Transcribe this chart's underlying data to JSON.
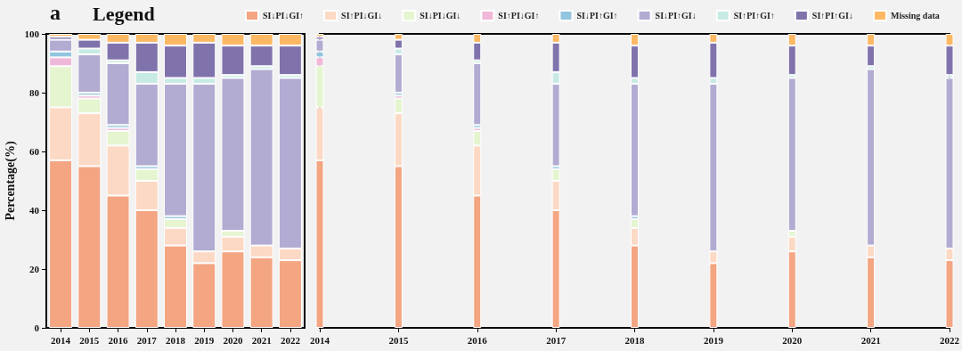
{
  "chart_data": [
    {
      "type": "bar",
      "title": "a",
      "legend_title": "Legend",
      "ylabel": "Percentage(%)",
      "stacked": true,
      "legend": "top",
      "grid": false,
      "categories": [
        "2014",
        "2015",
        "2016",
        "2017",
        "2018",
        "2019",
        "2020",
        "2021",
        "2022"
      ],
      "ylim": [
        0,
        100
      ],
      "yticks": [
        0,
        20,
        40,
        60,
        80,
        100
      ],
      "series": [
        {
          "name": "SI↓PI↓GI↑",
          "color": "#f4a582",
          "values": [
            57,
            55,
            45,
            40,
            28,
            22,
            26,
            24,
            23
          ]
        },
        {
          "name": "SI↑PI↓GI↓",
          "color": "#fcd9c4",
          "values": [
            18,
            18,
            17,
            10,
            6,
            4,
            5,
            4,
            4
          ]
        },
        {
          "name": "SI↓PI↓GI↓",
          "color": "#e5f5d0",
          "values": [
            14,
            5,
            5,
            4,
            3,
            0,
            2,
            0,
            0
          ]
        },
        {
          "name": "SI↑PI↓GI↑",
          "color": "#f0b8d8",
          "values": [
            3,
            1,
            1,
            0,
            0,
            0,
            0,
            0,
            0
          ]
        },
        {
          "name": "SI↓PI↑GI↑",
          "color": "#92c5de",
          "values": [
            2,
            1,
            1,
            1,
            1,
            0,
            0,
            0,
            0
          ]
        },
        {
          "name": "SI↓PI↑GI↓",
          "color": "#b2abd2",
          "values": [
            4,
            13,
            21,
            28,
            45,
            57,
            52,
            60,
            58
          ]
        },
        {
          "name": "SI↑PI↑GI↑",
          "color": "#c7eae5",
          "values": [
            0,
            2,
            1,
            4,
            2,
            2,
            1,
            1,
            1
          ]
        },
        {
          "name": "SI↑PI↑GI↓",
          "color": "#8073ac",
          "values": [
            1,
            3,
            6,
            10,
            11,
            12,
            10,
            7,
            10
          ]
        },
        {
          "name": "Missing data",
          "color": "#fdb863",
          "values": [
            1,
            2,
            3,
            3,
            4,
            3,
            4,
            4,
            4
          ]
        }
      ]
    },
    {
      "type": "bar",
      "stacked": true,
      "grid": false,
      "tick_labels": "x",
      "categories": [
        "2014",
        "2015",
        "2016",
        "2017",
        "2018",
        "2019",
        "2020",
        "2021",
        "2022"
      ],
      "ylim": [
        0,
        100
      ],
      "yticks": [
        0,
        20,
        40,
        60,
        80,
        100
      ],
      "series": [
        {
          "color": "#f4a582",
          "values": [
            57,
            55,
            45,
            40,
            28,
            22,
            26,
            24,
            23
          ]
        },
        {
          "color": "#fcd9c4",
          "values": [
            18,
            18,
            17,
            10,
            6,
            4,
            5,
            4,
            4
          ]
        },
        {
          "color": "#e5f5d0",
          "values": [
            14,
            5,
            5,
            4,
            3,
            0,
            2,
            0,
            0
          ]
        },
        {
          "color": "#f0b8d8",
          "values": [
            3,
            1,
            1,
            0,
            0,
            0,
            0,
            0,
            0
          ]
        },
        {
          "color": "#92c5de",
          "values": [
            2,
            1,
            1,
            1,
            1,
            0,
            0,
            0,
            0
          ]
        },
        {
          "color": "#b2abd2",
          "values": [
            4,
            13,
            21,
            28,
            45,
            57,
            52,
            60,
            58
          ]
        },
        {
          "color": "#c7eae5",
          "values": [
            0,
            2,
            1,
            4,
            2,
            2,
            1,
            1,
            1
          ]
        },
        {
          "color": "#8073ac",
          "values": [
            1,
            3,
            6,
            10,
            11,
            12,
            10,
            7,
            10
          ]
        },
        {
          "color": "#fdb863",
          "values": [
            1,
            2,
            3,
            3,
            4,
            3,
            4,
            4,
            4
          ]
        }
      ]
    }
  ]
}
